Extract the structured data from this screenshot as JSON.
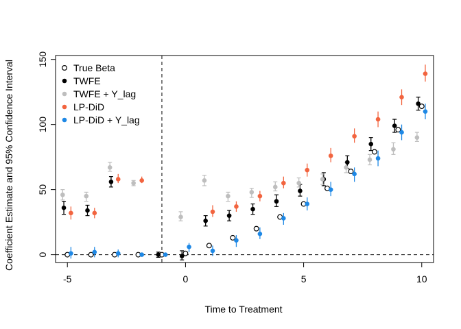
{
  "chart_data": {
    "type": "scatter",
    "title": "",
    "xlabel": "Time to Treatment",
    "ylabel": "Coefficient Estimate and 95% Confidence Interval",
    "xlim": [
      -5.5,
      10.5
    ],
    "ylim": [
      -6,
      153
    ],
    "xticks": [
      -5,
      0,
      5,
      10
    ],
    "yticks": [
      0,
      50,
      100,
      150
    ],
    "grid": false,
    "legend_position": "top-left",
    "reference_lines": [
      {
        "orientation": "vertical",
        "value": -1,
        "style": "dashed"
      },
      {
        "orientation": "horizontal",
        "value": 0,
        "style": "dashed"
      }
    ],
    "series": [
      {
        "name": "True Beta",
        "color": "#000000",
        "marker": "open-circle",
        "offset": 0.0,
        "points": [
          {
            "x": -5,
            "y": 0
          },
          {
            "x": -4,
            "y": 0
          },
          {
            "x": -3,
            "y": 0
          },
          {
            "x": -2,
            "y": 0
          },
          {
            "x": -1,
            "y": 0
          },
          {
            "x": 0,
            "y": 1
          },
          {
            "x": 1,
            "y": 7
          },
          {
            "x": 2,
            "y": 13
          },
          {
            "x": 3,
            "y": 20
          },
          {
            "x": 4,
            "y": 29
          },
          {
            "x": 5,
            "y": 39
          },
          {
            "x": 6,
            "y": 51
          },
          {
            "x": 7,
            "y": 64
          },
          {
            "x": 8,
            "y": 79
          },
          {
            "x": 9,
            "y": 96
          },
          {
            "x": 10,
            "y": 114
          }
        ]
      },
      {
        "name": "TWFE",
        "color": "#000000",
        "marker": "filled-circle",
        "offset": -0.15,
        "points": [
          {
            "x": -5,
            "y": 36,
            "lo": 31,
            "hi": 41
          },
          {
            "x": -4,
            "y": 34,
            "lo": 30,
            "hi": 38
          },
          {
            "x": -3,
            "y": 56,
            "lo": 52,
            "hi": 60
          },
          {
            "x": -1,
            "y": 0,
            "lo": -2,
            "hi": 2
          },
          {
            "x": 0,
            "y": -1,
            "lo": -4,
            "hi": 3
          },
          {
            "x": 1,
            "y": 26,
            "lo": 22,
            "hi": 30
          },
          {
            "x": 2,
            "y": 30,
            "lo": 26,
            "hi": 34
          },
          {
            "x": 3,
            "y": 35,
            "lo": 31,
            "hi": 39
          },
          {
            "x": 4,
            "y": 41,
            "lo": 37,
            "hi": 46
          },
          {
            "x": 5,
            "y": 49,
            "lo": 45,
            "hi": 54
          },
          {
            "x": 6,
            "y": 58,
            "lo": 53,
            "hi": 63
          },
          {
            "x": 7,
            "y": 71,
            "lo": 66,
            "hi": 76
          },
          {
            "x": 8,
            "y": 85,
            "lo": 80,
            "hi": 90
          },
          {
            "x": 9,
            "y": 99,
            "lo": 94,
            "hi": 104
          },
          {
            "x": 10,
            "y": 116,
            "lo": 111,
            "hi": 121
          }
        ]
      },
      {
        "name": "TWFE + Y_lag",
        "color": "#bebebe",
        "marker": "filled-circle",
        "offset": -0.2,
        "points": [
          {
            "x": -5,
            "y": 46,
            "lo": 42,
            "hi": 50
          },
          {
            "x": -4,
            "y": 45,
            "lo": 41,
            "hi": 48
          },
          {
            "x": -3,
            "y": 67,
            "lo": 64,
            "hi": 71
          },
          {
            "x": -2,
            "y": 55,
            "lo": 53,
            "hi": 57
          },
          {
            "x": 0,
            "y": 29,
            "lo": 26,
            "hi": 33
          },
          {
            "x": 1,
            "y": 57,
            "lo": 53,
            "hi": 61
          },
          {
            "x": 2,
            "y": 45,
            "lo": 41,
            "hi": 48
          },
          {
            "x": 3,
            "y": 48,
            "lo": 44,
            "hi": 51
          },
          {
            "x": 4,
            "y": 52,
            "lo": 49,
            "hi": 56
          },
          {
            "x": 5,
            "y": 55,
            "lo": 52,
            "hi": 59
          },
          {
            "x": 6,
            "y": 58,
            "lo": 54,
            "hi": 62
          },
          {
            "x": 7,
            "y": 67,
            "lo": 63,
            "hi": 71
          },
          {
            "x": 8,
            "y": 73,
            "lo": 69,
            "hi": 77
          },
          {
            "x": 9,
            "y": 81,
            "lo": 77,
            "hi": 86
          },
          {
            "x": 10,
            "y": 90,
            "lo": 87,
            "hi": 94
          }
        ]
      },
      {
        "name": "LP-DiD",
        "color": "#f2643f",
        "marker": "filled-circle",
        "offset": 0.15,
        "points": [
          {
            "x": -5,
            "y": 32,
            "lo": 27,
            "hi": 37
          },
          {
            "x": -4,
            "y": 32,
            "lo": 28,
            "hi": 36
          },
          {
            "x": -3,
            "y": 58,
            "lo": 55,
            "hi": 62
          },
          {
            "x": -2,
            "y": 57,
            "lo": 55,
            "hi": 60
          },
          {
            "x": 1,
            "y": 33,
            "lo": 29,
            "hi": 38
          },
          {
            "x": 2,
            "y": 37,
            "lo": 33,
            "hi": 41
          },
          {
            "x": 3,
            "y": 45,
            "lo": 41,
            "hi": 49
          },
          {
            "x": 4,
            "y": 55,
            "lo": 51,
            "hi": 60
          },
          {
            "x": 5,
            "y": 65,
            "lo": 60,
            "hi": 70
          },
          {
            "x": 6,
            "y": 76,
            "lo": 71,
            "hi": 82
          },
          {
            "x": 7,
            "y": 91,
            "lo": 86,
            "hi": 97
          },
          {
            "x": 8,
            "y": 104,
            "lo": 98,
            "hi": 110
          },
          {
            "x": 9,
            "y": 121,
            "lo": 115,
            "hi": 127
          },
          {
            "x": 10,
            "y": 139,
            "lo": 133,
            "hi": 146
          }
        ]
      },
      {
        "name": "LP-DiD + Y_lag",
        "color": "#1e88e5",
        "marker": "filled-circle",
        "offset": 0.15,
        "points": [
          {
            "x": -5,
            "y": 1,
            "lo": -3,
            "hi": 6
          },
          {
            "x": -4,
            "y": 2,
            "lo": -2,
            "hi": 6
          },
          {
            "x": -3,
            "y": 1,
            "lo": -2,
            "hi": 4
          },
          {
            "x": -2,
            "y": 0,
            "lo": -1,
            "hi": 1
          },
          {
            "x": -1,
            "y": 0,
            "lo": -1,
            "hi": 1
          },
          {
            "x": 0,
            "y": 6,
            "lo": 2,
            "hi": 9
          },
          {
            "x": 1,
            "y": 3,
            "lo": -1,
            "hi": 7
          },
          {
            "x": 2,
            "y": 11,
            "lo": 6,
            "hi": 15
          },
          {
            "x": 3,
            "y": 16,
            "lo": 12,
            "hi": 21
          },
          {
            "x": 4,
            "y": 28,
            "lo": 23,
            "hi": 32
          },
          {
            "x": 5,
            "y": 39,
            "lo": 34,
            "hi": 44
          },
          {
            "x": 6,
            "y": 50,
            "lo": 45,
            "hi": 56
          },
          {
            "x": 7,
            "y": 62,
            "lo": 56,
            "hi": 67
          },
          {
            "x": 8,
            "y": 74,
            "lo": 68,
            "hi": 80
          },
          {
            "x": 9,
            "y": 94,
            "lo": 88,
            "hi": 100
          },
          {
            "x": 10,
            "y": 110,
            "lo": 104,
            "hi": 116
          }
        ]
      }
    ]
  }
}
